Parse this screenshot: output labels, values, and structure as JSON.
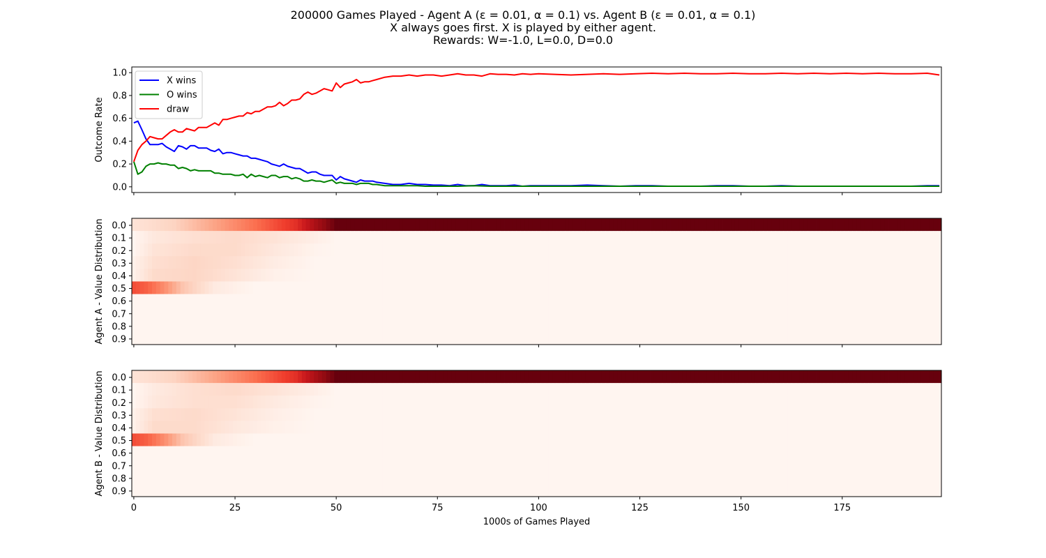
{
  "title_lines": [
    "200000 Games Played - Agent A (ε = 0.01, α = 0.1) vs. Agent B (ε = 0.01, α = 0.1)",
    "X always goes first.  X is played by either agent.",
    "Rewards: W=-1.0, L=0.0, D=0.0"
  ],
  "colors": {
    "x_wins": "#0000ff",
    "o_wins": "#008000",
    "draw": "#ff0000",
    "heat_low": "#fff5f0",
    "heat_high": "#67000d"
  },
  "chart_data": [
    {
      "type": "line",
      "ylabel": "Outcome Rate",
      "xlabel": "",
      "xlim": [
        -0.5,
        199.5
      ],
      "ylim": [
        -0.05,
        1.05
      ],
      "x_ticks": [
        0,
        25,
        50,
        75,
        100,
        125,
        150,
        175
      ],
      "y_ticks": [
        0.0,
        0.2,
        0.4,
        0.6,
        0.8,
        1.0
      ],
      "y_tick_labels": [
        "0.0",
        "0.2",
        "0.4",
        "0.6",
        "0.8",
        "1.0"
      ],
      "legend_position": "upper-left",
      "series": [
        {
          "name": "X wins",
          "color": "#0000ff",
          "x": [
            0,
            1,
            2,
            3,
            4,
            5,
            6,
            7,
            8,
            9,
            10,
            11,
            12,
            13,
            14,
            15,
            16,
            17,
            18,
            19,
            20,
            21,
            22,
            23,
            24,
            25,
            26,
            27,
            28,
            29,
            30,
            31,
            32,
            33,
            34,
            35,
            36,
            37,
            38,
            39,
            40,
            41,
            42,
            43,
            44,
            45,
            46,
            47,
            48,
            49,
            50,
            51,
            52,
            53,
            54,
            55,
            56,
            57,
            58,
            59,
            60,
            62,
            64,
            66,
            68,
            70,
            72,
            74,
            76,
            78,
            80,
            82,
            84,
            86,
            88,
            90,
            92,
            94,
            96,
            98,
            100,
            104,
            108,
            112,
            116,
            120,
            124,
            128,
            132,
            136,
            140,
            144,
            148,
            152,
            156,
            160,
            164,
            168,
            172,
            176,
            180,
            184,
            188,
            192,
            196,
            199
          ],
          "y": [
            0.56,
            0.575,
            0.5,
            0.42,
            0.37,
            0.37,
            0.37,
            0.38,
            0.35,
            0.33,
            0.31,
            0.36,
            0.35,
            0.33,
            0.36,
            0.36,
            0.34,
            0.34,
            0.34,
            0.32,
            0.31,
            0.33,
            0.29,
            0.3,
            0.3,
            0.29,
            0.28,
            0.27,
            0.27,
            0.25,
            0.25,
            0.24,
            0.23,
            0.22,
            0.2,
            0.19,
            0.18,
            0.2,
            0.18,
            0.17,
            0.16,
            0.16,
            0.14,
            0.12,
            0.13,
            0.13,
            0.11,
            0.1,
            0.1,
            0.1,
            0.06,
            0.09,
            0.07,
            0.06,
            0.05,
            0.04,
            0.06,
            0.05,
            0.05,
            0.05,
            0.04,
            0.03,
            0.02,
            0.02,
            0.03,
            0.02,
            0.02,
            0.015,
            0.015,
            0.01,
            0.02,
            0.01,
            0.01,
            0.02,
            0.01,
            0.01,
            0.01,
            0.015,
            0.005,
            0.01,
            0.01,
            0.01,
            0.01,
            0.015,
            0.01,
            0.005,
            0.01,
            0.01,
            0.005,
            0.005,
            0.005,
            0.01,
            0.01,
            0.005,
            0.005,
            0.01,
            0.005,
            0.005,
            0.005,
            0.005,
            0.005,
            0.005,
            0.005,
            0.005,
            0.01,
            0.01
          ]
        },
        {
          "name": "O wins",
          "color": "#008000",
          "x": [
            0,
            1,
            2,
            3,
            4,
            5,
            6,
            7,
            8,
            9,
            10,
            11,
            12,
            13,
            14,
            15,
            16,
            17,
            18,
            19,
            20,
            21,
            22,
            23,
            24,
            25,
            26,
            27,
            28,
            29,
            30,
            31,
            32,
            33,
            34,
            35,
            36,
            37,
            38,
            39,
            40,
            41,
            42,
            43,
            44,
            45,
            46,
            47,
            48,
            49,
            50,
            51,
            52,
            53,
            54,
            55,
            56,
            57,
            58,
            59,
            60,
            62,
            64,
            66,
            68,
            70,
            72,
            74,
            76,
            78,
            80,
            84,
            88,
            92,
            96,
            100,
            108,
            116,
            124,
            132,
            140,
            148,
            156,
            164,
            172,
            180,
            188,
            196,
            199
          ],
          "y": [
            0.22,
            0.11,
            0.13,
            0.18,
            0.2,
            0.2,
            0.21,
            0.2,
            0.2,
            0.19,
            0.19,
            0.16,
            0.17,
            0.16,
            0.14,
            0.15,
            0.14,
            0.14,
            0.14,
            0.14,
            0.12,
            0.12,
            0.11,
            0.11,
            0.11,
            0.1,
            0.1,
            0.11,
            0.08,
            0.11,
            0.09,
            0.1,
            0.09,
            0.08,
            0.1,
            0.1,
            0.08,
            0.09,
            0.09,
            0.07,
            0.08,
            0.07,
            0.05,
            0.05,
            0.06,
            0.05,
            0.05,
            0.04,
            0.05,
            0.06,
            0.03,
            0.04,
            0.03,
            0.03,
            0.03,
            0.02,
            0.03,
            0.03,
            0.03,
            0.02,
            0.02,
            0.01,
            0.01,
            0.01,
            0.01,
            0.01,
            0.005,
            0.005,
            0.005,
            0.005,
            0.005,
            0.01,
            0.005,
            0.005,
            0.005,
            0.005,
            0.005,
            0.005,
            0.005,
            0.005,
            0.005,
            0.005,
            0.005,
            0.005,
            0.005,
            0.005,
            0.005,
            0.005,
            0.005
          ]
        },
        {
          "name": "draw",
          "color": "#ff0000",
          "x": [
            0,
            1,
            2,
            3,
            4,
            5,
            6,
            7,
            8,
            9,
            10,
            11,
            12,
            13,
            14,
            15,
            16,
            17,
            18,
            19,
            20,
            21,
            22,
            23,
            24,
            25,
            26,
            27,
            28,
            29,
            30,
            31,
            32,
            33,
            34,
            35,
            36,
            37,
            38,
            39,
            40,
            41,
            42,
            43,
            44,
            45,
            46,
            47,
            48,
            49,
            50,
            51,
            52,
            53,
            54,
            55,
            56,
            57,
            58,
            59,
            60,
            62,
            64,
            66,
            68,
            70,
            72,
            74,
            76,
            78,
            80,
            82,
            84,
            86,
            88,
            90,
            92,
            94,
            96,
            98,
            100,
            104,
            108,
            112,
            116,
            120,
            124,
            128,
            132,
            136,
            140,
            144,
            148,
            152,
            156,
            160,
            164,
            168,
            172,
            176,
            180,
            184,
            188,
            192,
            196,
            199
          ],
          "y": [
            0.22,
            0.32,
            0.37,
            0.4,
            0.44,
            0.43,
            0.42,
            0.42,
            0.45,
            0.48,
            0.5,
            0.48,
            0.48,
            0.51,
            0.5,
            0.49,
            0.52,
            0.52,
            0.52,
            0.54,
            0.56,
            0.54,
            0.59,
            0.59,
            0.6,
            0.61,
            0.62,
            0.62,
            0.65,
            0.64,
            0.66,
            0.66,
            0.68,
            0.7,
            0.7,
            0.71,
            0.74,
            0.71,
            0.73,
            0.76,
            0.76,
            0.77,
            0.81,
            0.83,
            0.81,
            0.82,
            0.84,
            0.86,
            0.85,
            0.84,
            0.91,
            0.87,
            0.9,
            0.91,
            0.92,
            0.94,
            0.91,
            0.92,
            0.92,
            0.93,
            0.94,
            0.96,
            0.97,
            0.97,
            0.98,
            0.97,
            0.98,
            0.98,
            0.97,
            0.98,
            0.99,
            0.98,
            0.98,
            0.97,
            0.99,
            0.985,
            0.985,
            0.98,
            0.99,
            0.985,
            0.99,
            0.985,
            0.98,
            0.985,
            0.99,
            0.985,
            0.99,
            0.995,
            0.99,
            0.995,
            0.99,
            0.99,
            0.995,
            0.99,
            0.99,
            0.995,
            0.99,
            0.995,
            0.99,
            0.995,
            0.99,
            0.995,
            0.99,
            0.99,
            0.995,
            0.98
          ]
        }
      ]
    },
    {
      "type": "heatmap",
      "ylabel": "Agent A - Value Distribution",
      "xlabel": "",
      "y_categories": [
        "0.0",
        "0.1",
        "0.2",
        "0.3",
        "0.4",
        "0.5",
        "0.6",
        "0.7",
        "0.8",
        "0.9"
      ],
      "x_ticks": [
        0,
        25,
        50,
        75,
        100,
        125,
        150,
        175
      ],
      "n_columns": 200,
      "colormap": "Reds",
      "row_intensity_by_column": {
        "0.0": {
          "x": [
            0,
            10,
            20,
            30,
            40,
            45,
            50,
            199
          ],
          "v": [
            0.08,
            0.15,
            0.3,
            0.45,
            0.65,
            0.85,
            1.0,
            1.0
          ]
        },
        "0.1": {
          "x": [
            0,
            5,
            15,
            25,
            35,
            45,
            50,
            199
          ],
          "v": [
            0.0,
            0.06,
            0.1,
            0.12,
            0.08,
            0.03,
            0.0,
            0.0
          ]
        },
        "0.2": {
          "x": [
            0,
            5,
            15,
            25,
            35,
            45,
            50,
            199
          ],
          "v": [
            0.0,
            0.08,
            0.12,
            0.12,
            0.06,
            0.01,
            0.0,
            0.0
          ]
        },
        "0.3": {
          "x": [
            0,
            5,
            15,
            25,
            35,
            45,
            50,
            199
          ],
          "v": [
            0.02,
            0.1,
            0.14,
            0.1,
            0.04,
            0.0,
            0.0,
            0.0
          ]
        },
        "0.4": {
          "x": [
            0,
            5,
            15,
            25,
            35,
            45,
            50,
            199
          ],
          "v": [
            0.02,
            0.12,
            0.14,
            0.08,
            0.02,
            0.0,
            0.0,
            0.0
          ]
        },
        "0.5": {
          "x": [
            0,
            3,
            8,
            12,
            20,
            30,
            40,
            199
          ],
          "v": [
            0.55,
            0.5,
            0.35,
            0.2,
            0.05,
            0.0,
            0.0,
            0.0
          ]
        },
        "0.6": {
          "x": [
            0,
            199
          ],
          "v": [
            0.0,
            0.0
          ]
        },
        "0.7": {
          "x": [
            0,
            199
          ],
          "v": [
            0.0,
            0.0
          ]
        },
        "0.8": {
          "x": [
            0,
            199
          ],
          "v": [
            0.0,
            0.0
          ]
        },
        "0.9": {
          "x": [
            0,
            199
          ],
          "v": [
            0.0,
            0.0
          ]
        }
      }
    },
    {
      "type": "heatmap",
      "ylabel": "Agent B - Value Distribution",
      "xlabel": "1000s of Games Played",
      "y_categories": [
        "0.0",
        "0.1",
        "0.2",
        "0.3",
        "0.4",
        "0.5",
        "0.6",
        "0.7",
        "0.8",
        "0.9"
      ],
      "x_ticks": [
        0,
        25,
        50,
        75,
        100,
        125,
        150,
        175
      ],
      "x_tick_labels": [
        "0",
        "25",
        "50",
        "75",
        "100",
        "125",
        "150",
        "175"
      ],
      "n_columns": 200,
      "colormap": "Reds",
      "row_intensity_by_column": {
        "0.0": {
          "x": [
            0,
            10,
            20,
            30,
            40,
            45,
            50,
            199
          ],
          "v": [
            0.08,
            0.15,
            0.3,
            0.45,
            0.65,
            0.85,
            1.0,
            1.0
          ]
        },
        "0.1": {
          "x": [
            0,
            5,
            15,
            25,
            35,
            45,
            50,
            199
          ],
          "v": [
            0.0,
            0.05,
            0.1,
            0.12,
            0.08,
            0.03,
            0.0,
            0.0
          ]
        },
        "0.2": {
          "x": [
            0,
            5,
            15,
            25,
            35,
            45,
            50,
            199
          ],
          "v": [
            0.0,
            0.06,
            0.1,
            0.1,
            0.05,
            0.01,
            0.0,
            0.0
          ]
        },
        "0.3": {
          "x": [
            0,
            5,
            15,
            25,
            35,
            45,
            50,
            199
          ],
          "v": [
            0.02,
            0.1,
            0.12,
            0.08,
            0.03,
            0.0,
            0.0,
            0.0
          ]
        },
        "0.4": {
          "x": [
            0,
            5,
            15,
            25,
            35,
            45,
            50,
            199
          ],
          "v": [
            0.02,
            0.12,
            0.12,
            0.06,
            0.02,
            0.0,
            0.0,
            0.0
          ]
        },
        "0.5": {
          "x": [
            0,
            3,
            8,
            12,
            20,
            30,
            40,
            199
          ],
          "v": [
            0.55,
            0.5,
            0.35,
            0.2,
            0.05,
            0.0,
            0.0,
            0.0
          ]
        },
        "0.6": {
          "x": [
            0,
            199
          ],
          "v": [
            0.0,
            0.0
          ]
        },
        "0.7": {
          "x": [
            0,
            199
          ],
          "v": [
            0.0,
            0.0
          ]
        },
        "0.8": {
          "x": [
            0,
            199
          ],
          "v": [
            0.0,
            0.0
          ]
        },
        "0.9": {
          "x": [
            0,
            199
          ],
          "v": [
            0.0,
            0.0
          ]
        }
      }
    }
  ]
}
